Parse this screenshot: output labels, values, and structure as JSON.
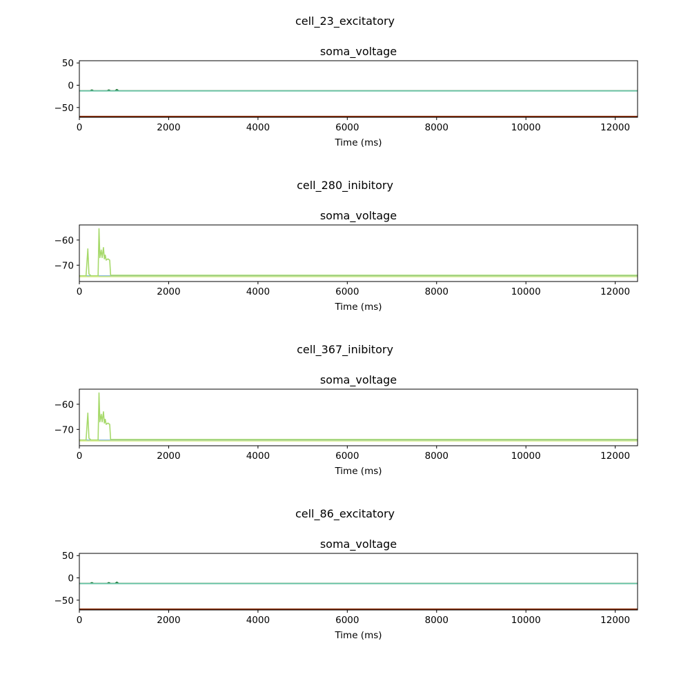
{
  "chart_data": [
    {
      "type": "line",
      "figure_title": "cell_23_excitatory",
      "title": "soma_voltage",
      "xlabel": "Time (ms)",
      "ylabel": "",
      "xlim": [
        0,
        12500
      ],
      "ylim": [
        -72,
        55
      ],
      "xticks": [
        0,
        2000,
        4000,
        6000,
        8000,
        10000,
        12000
      ],
      "yticks": [
        -50,
        0,
        50
      ],
      "grid": false,
      "series": [
        {
          "color": "#8c2d04",
          "points": [
            [
              0,
              -70
            ],
            [
              12500,
              -70
            ]
          ]
        },
        {
          "color": "#1b7837",
          "points": [
            [
              0,
              -12.5
            ],
            [
              240,
              -12.5
            ],
            [
              280,
              -10.5
            ],
            [
              320,
              -12.5
            ],
            [
              620,
              -12.5
            ],
            [
              660,
              -10.5
            ],
            [
              700,
              -12.5
            ],
            [
              800,
              -12.5
            ],
            [
              840,
              -9.5
            ],
            [
              880,
              -12.5
            ],
            [
              12500,
              -12.5
            ]
          ]
        },
        {
          "color": "#66c2a5",
          "points": [
            [
              0,
              -12.8
            ],
            [
              12500,
              -12.8
            ]
          ]
        }
      ]
    },
    {
      "type": "line",
      "figure_title": "cell_280_inibitory",
      "title": "soma_voltage",
      "xlabel": "Time (ms)",
      "ylabel": "",
      "xlim": [
        0,
        12500
      ],
      "ylim": [
        -76.5,
        -54
      ],
      "xticks": [
        0,
        2000,
        4000,
        6000,
        8000,
        10000,
        12000
      ],
      "yticks": [
        -70,
        -60
      ],
      "grid": false,
      "series": [
        {
          "color": "#74add1",
          "points": [
            [
              0,
              -74.3
            ],
            [
              12500,
              -74.3
            ]
          ]
        },
        {
          "color": "#a6d96a",
          "points": [
            [
              0,
              -74.2
            ],
            [
              150,
              -74.2
            ],
            [
              190,
              -63.5
            ],
            [
              215,
              -73.5
            ],
            [
              260,
              -74.2
            ],
            [
              420,
              -74.2
            ],
            [
              440,
              -55.5
            ],
            [
              460,
              -67
            ],
            [
              490,
              -64
            ],
            [
              510,
              -67
            ],
            [
              540,
              -63
            ],
            [
              560,
              -67.5
            ],
            [
              580,
              -66
            ],
            [
              600,
              -68
            ],
            [
              640,
              -67.5
            ],
            [
              680,
              -68
            ],
            [
              700,
              -74
            ],
            [
              12500,
              -74
            ]
          ]
        },
        {
          "color": "#d9ef8b",
          "points": [
            [
              0,
              -74.6
            ],
            [
              12500,
              -74.6
            ]
          ]
        }
      ]
    },
    {
      "type": "line",
      "figure_title": "cell_367_inibitory",
      "title": "soma_voltage",
      "xlabel": "Time (ms)",
      "ylabel": "",
      "xlim": [
        0,
        12500
      ],
      "ylim": [
        -76.5,
        -54
      ],
      "xticks": [
        0,
        2000,
        4000,
        6000,
        8000,
        10000,
        12000
      ],
      "yticks": [
        -70,
        -60
      ],
      "grid": false,
      "series": [
        {
          "color": "#74add1",
          "points": [
            [
              0,
              -74.3
            ],
            [
              12500,
              -74.3
            ]
          ]
        },
        {
          "color": "#a6d96a",
          "points": [
            [
              0,
              -74.2
            ],
            [
              150,
              -74.2
            ],
            [
              190,
              -63.5
            ],
            [
              215,
              -73.5
            ],
            [
              260,
              -74.2
            ],
            [
              420,
              -74.2
            ],
            [
              440,
              -55.5
            ],
            [
              460,
              -67
            ],
            [
              490,
              -64
            ],
            [
              510,
              -67
            ],
            [
              540,
              -63
            ],
            [
              560,
              -67.5
            ],
            [
              580,
              -66
            ],
            [
              600,
              -68
            ],
            [
              640,
              -67.5
            ],
            [
              680,
              -68
            ],
            [
              700,
              -74
            ],
            [
              12500,
              -74
            ]
          ]
        },
        {
          "color": "#d9ef8b",
          "points": [
            [
              0,
              -74.6
            ],
            [
              12500,
              -74.6
            ]
          ]
        }
      ]
    },
    {
      "type": "line",
      "figure_title": "cell_86_excitatory",
      "title": "soma_voltage",
      "xlabel": "Time (ms)",
      "ylabel": "",
      "xlim": [
        0,
        12500
      ],
      "ylim": [
        -72,
        55
      ],
      "xticks": [
        0,
        2000,
        4000,
        6000,
        8000,
        10000,
        12000
      ],
      "yticks": [
        -50,
        0,
        50
      ],
      "grid": false,
      "series": [
        {
          "color": "#8c2d04",
          "points": [
            [
              0,
              -70
            ],
            [
              12500,
              -70
            ]
          ]
        },
        {
          "color": "#1b7837",
          "points": [
            [
              0,
              -12.5
            ],
            [
              240,
              -12.5
            ],
            [
              280,
              -10.5
            ],
            [
              320,
              -12.5
            ],
            [
              620,
              -12.5
            ],
            [
              660,
              -10.5
            ],
            [
              700,
              -12.5
            ],
            [
              800,
              -12.5
            ],
            [
              840,
              -9.5
            ],
            [
              880,
              -12.5
            ],
            [
              12500,
              -12.5
            ]
          ]
        },
        {
          "color": "#66c2a5",
          "points": [
            [
              0,
              -12.8
            ],
            [
              12500,
              -12.8
            ]
          ]
        }
      ]
    }
  ]
}
